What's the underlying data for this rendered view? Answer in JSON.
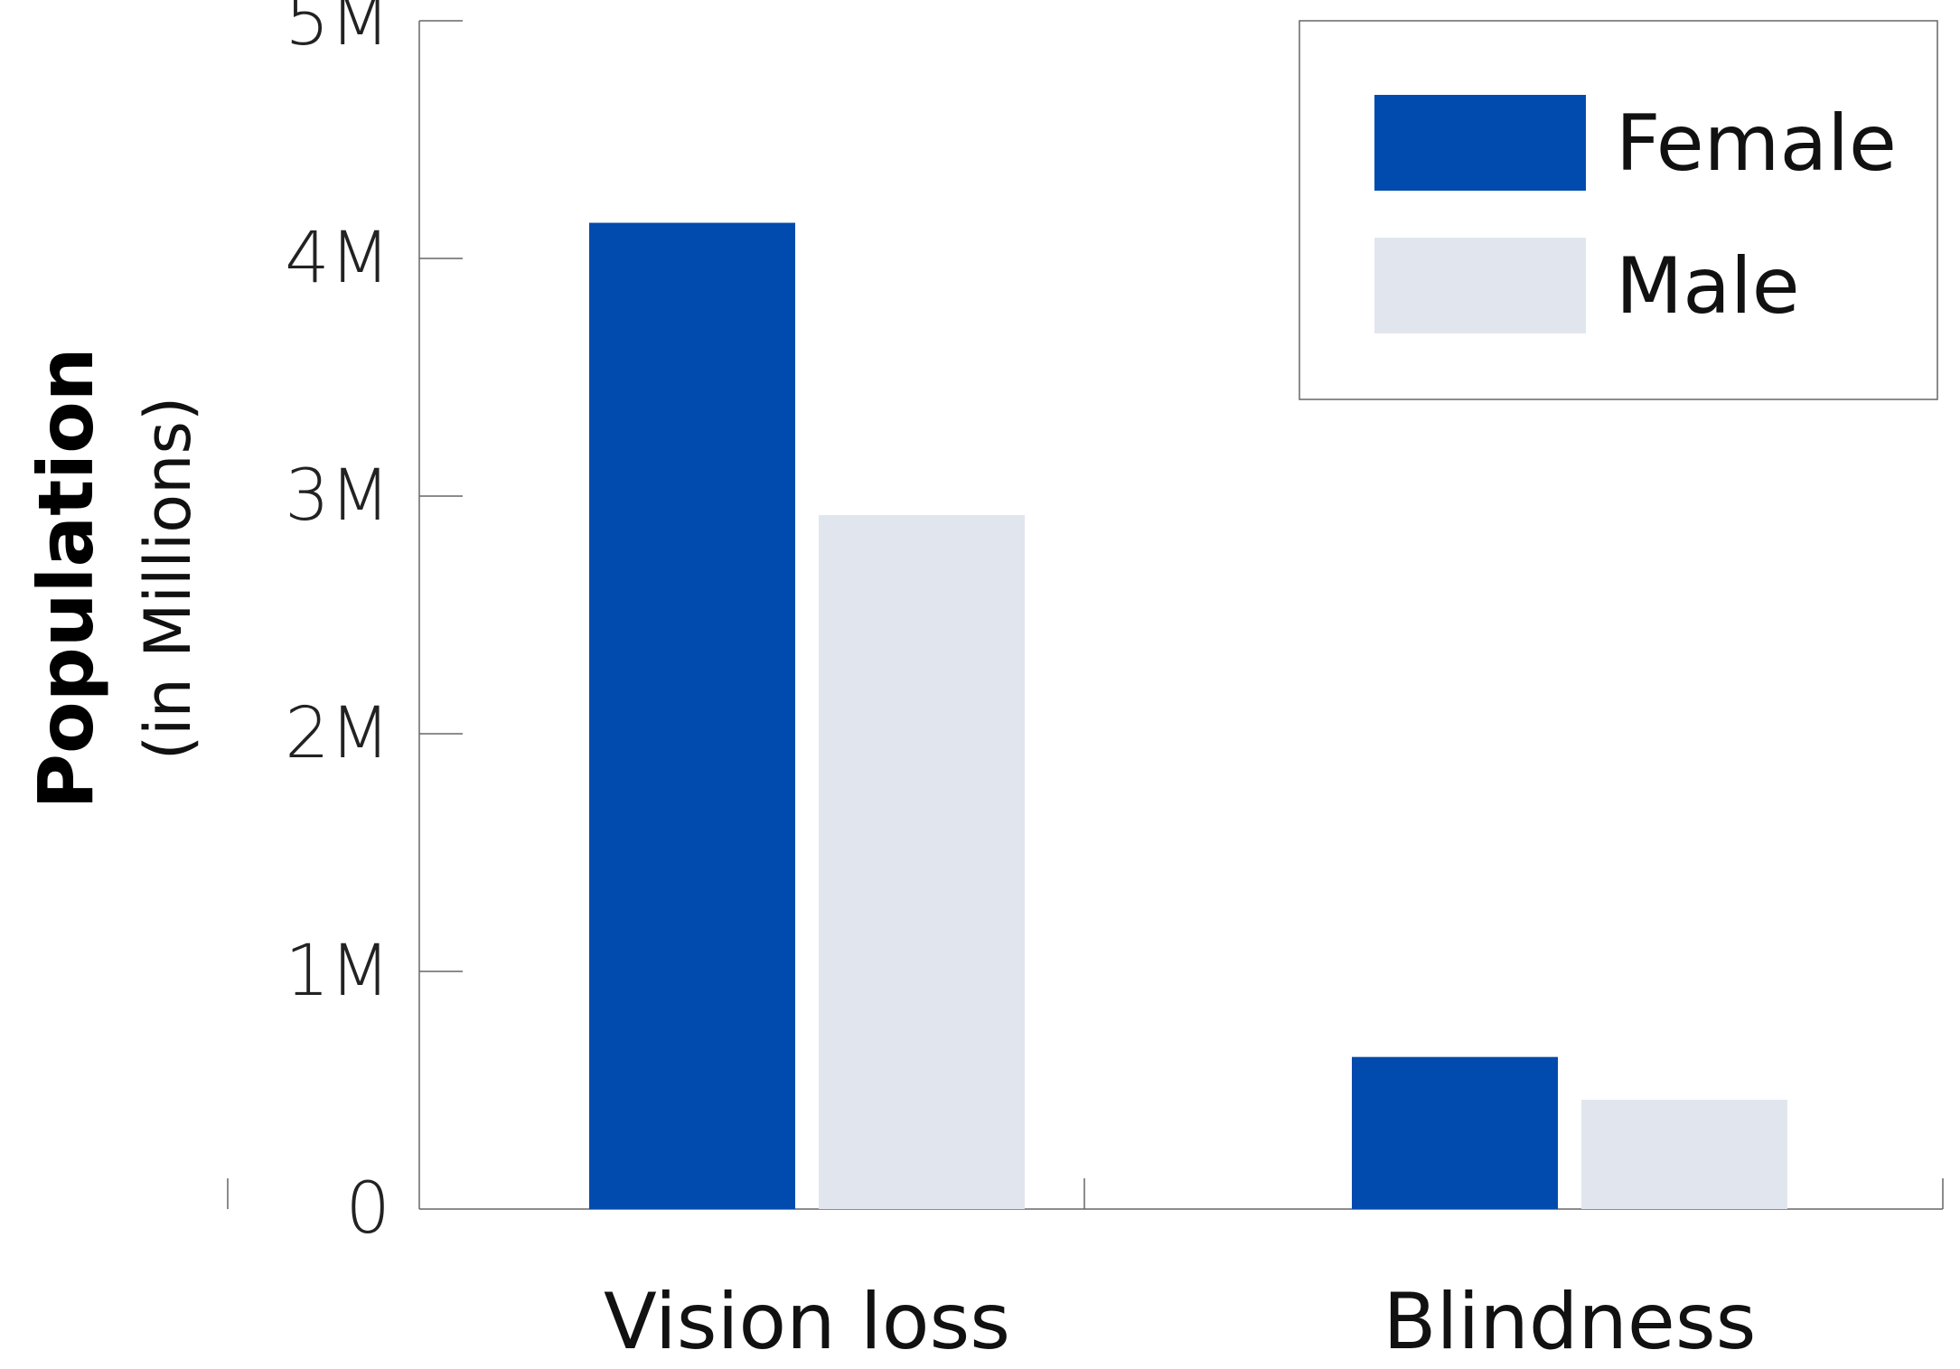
{
  "chart_data": {
    "type": "bar",
    "title": "",
    "xlabel": "",
    "ylabel": "Population",
    "ylabel_sub": "(in Millions)",
    "categories": [
      "Vision loss",
      "Blindness"
    ],
    "series": [
      {
        "name": "Female",
        "values": [
          4.15,
          0.64
        ],
        "color": "#004BAD"
      },
      {
        "name": "Male",
        "values": [
          2.92,
          0.46
        ],
        "color": "#E1E6EE"
      }
    ],
    "ylim": [
      0,
      5
    ],
    "yticks": [
      {
        "value": 0,
        "label": "0"
      },
      {
        "value": 1,
        "label": "1M"
      },
      {
        "value": 2,
        "label": "2M"
      },
      {
        "value": 3,
        "label": "3M"
      },
      {
        "value": 4,
        "label": "4M"
      },
      {
        "value": 5,
        "label": "5M"
      }
    ],
    "grid": false,
    "legend_position": "top-right"
  }
}
